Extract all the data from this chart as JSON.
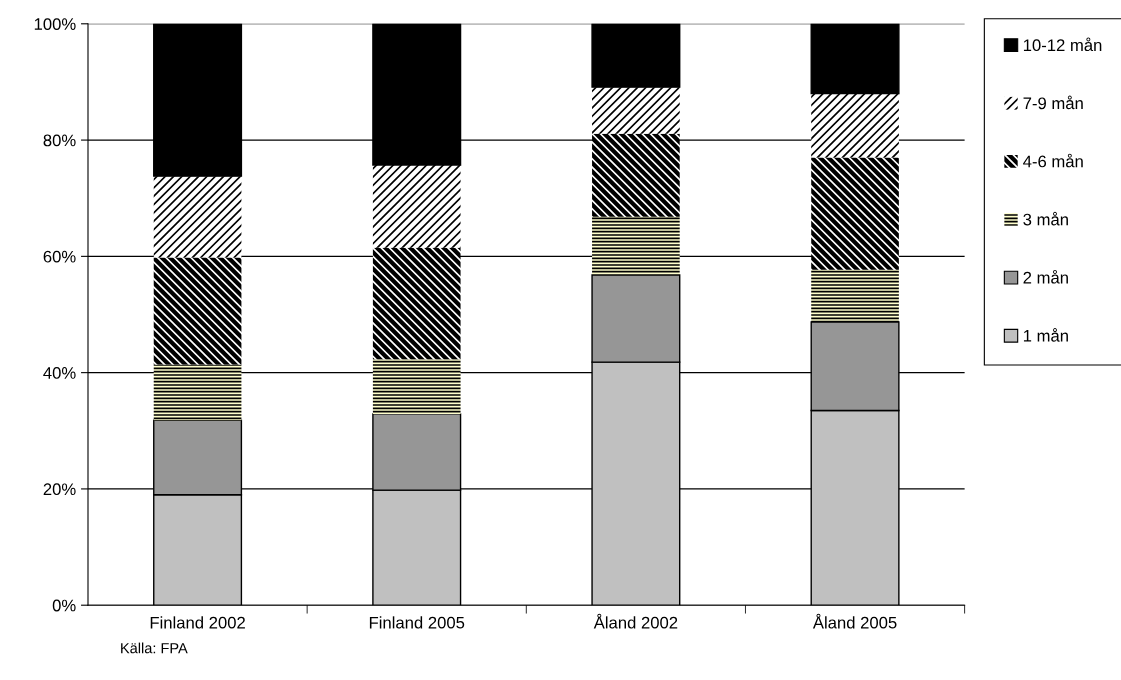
{
  "chart_data": {
    "type": "bar",
    "stacked": true,
    "categories": [
      "Finland 2002",
      "Finland 2005",
      "Åland 2002",
      "Åland 2005"
    ],
    "series": [
      {
        "name": "1 mån",
        "color": "#c0c0c0",
        "values": [
          19.0,
          19.8,
          41.8,
          33.5
        ]
      },
      {
        "name": "2 mån",
        "color": "#969696",
        "values": [
          12.8,
          13.1,
          15.0,
          15.2
        ]
      },
      {
        "name": "3 mån",
        "color": "#ffffcc",
        "values": [
          9.6,
          9.4,
          10.0,
          9.0
        ]
      },
      {
        "name": "4-6 mån",
        "color": "#000000",
        "values": [
          18.4,
          19.2,
          14.3,
          19.3
        ]
      },
      {
        "name": "7-9 mån",
        "color": "#ffffff",
        "values": [
          14.0,
          14.2,
          8.0,
          11.0
        ]
      },
      {
        "name": "10-12 mån",
        "color": "#000000",
        "values": [
          26.2,
          24.3,
          10.9,
          12.0
        ]
      }
    ],
    "ylim": [
      0,
      100
    ],
    "yticks": [
      {
        "value": 0,
        "label": "0%"
      },
      {
        "value": 20,
        "label": "20%"
      },
      {
        "value": 40,
        "label": "40%"
      },
      {
        "value": 60,
        "label": "60%"
      },
      {
        "value": 80,
        "label": "80%"
      },
      {
        "value": 100,
        "label": "100%"
      }
    ],
    "grid": "y",
    "legend": "right",
    "annotations": [
      "Källa: FPA"
    ]
  }
}
